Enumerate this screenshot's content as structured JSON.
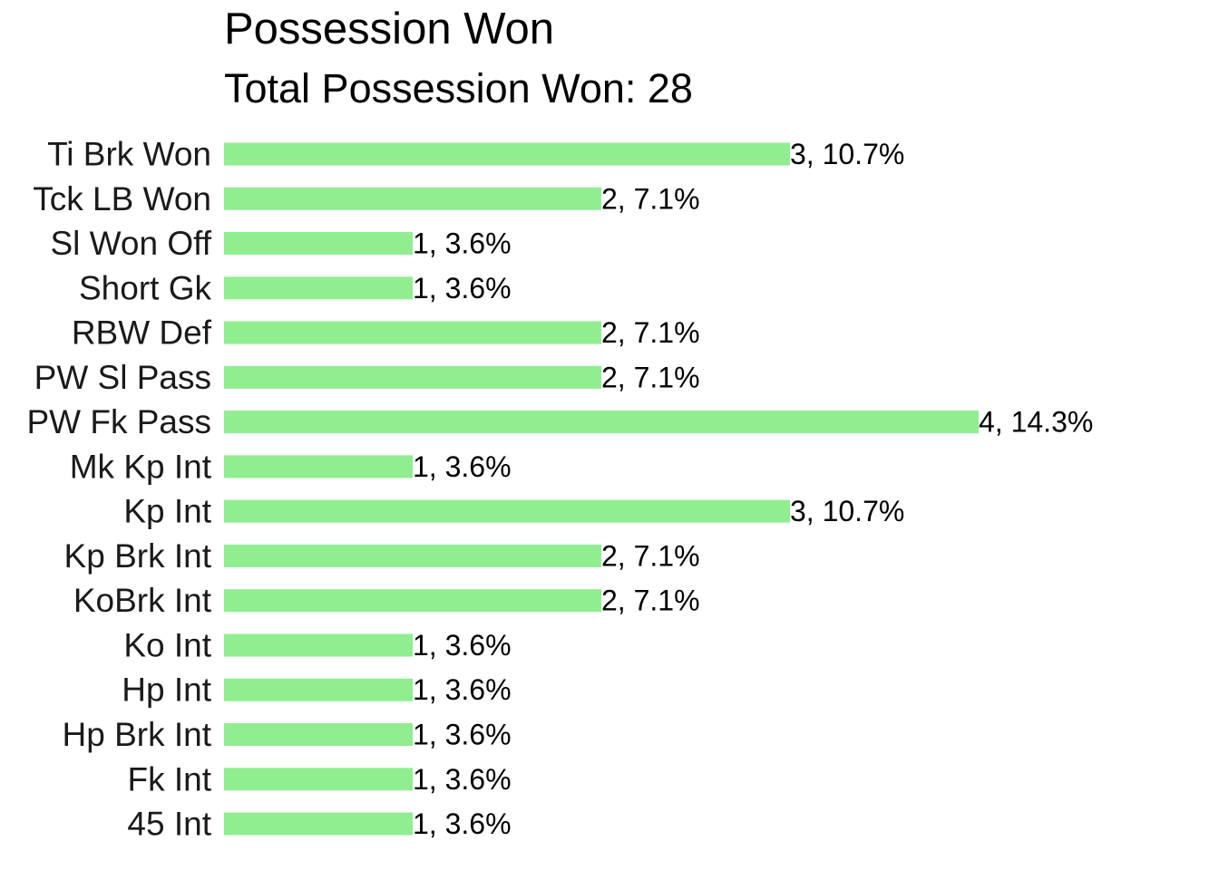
{
  "chart_data": {
    "type": "bar",
    "orientation": "horizontal",
    "title": "Possession Won",
    "subtitle": "Total Possession Won: 28",
    "xlabel": "",
    "ylabel": "",
    "grid": false,
    "bar_color": "#90EE90",
    "categories": [
      "Ti Brk Won",
      "Tck LB Won",
      "Sl Won Off",
      "Short Gk",
      "RBW Def",
      "PW Sl Pass",
      "PW Fk Pass",
      "Mk Kp Int",
      "Kp Int",
      "Kp Brk Int",
      "KoBrk Int",
      "Ko Int",
      "Hp Int",
      "Hp Brk Int",
      "Fk Int",
      "45 Int"
    ],
    "values": [
      3,
      2,
      1,
      1,
      2,
      2,
      4,
      1,
      3,
      2,
      2,
      1,
      1,
      1,
      1,
      1
    ],
    "data_labels": [
      "3, 10.7%",
      "2, 7.1%",
      "1, 3.6%",
      "1, 3.6%",
      "2, 7.1%",
      "2, 7.1%",
      "4, 14.3%",
      "1, 3.6%",
      "3, 10.7%",
      "2, 7.1%",
      "2, 7.1%",
      "1, 3.6%",
      "1, 3.6%",
      "1, 3.6%",
      "1, 3.6%",
      "1, 3.6%"
    ]
  }
}
